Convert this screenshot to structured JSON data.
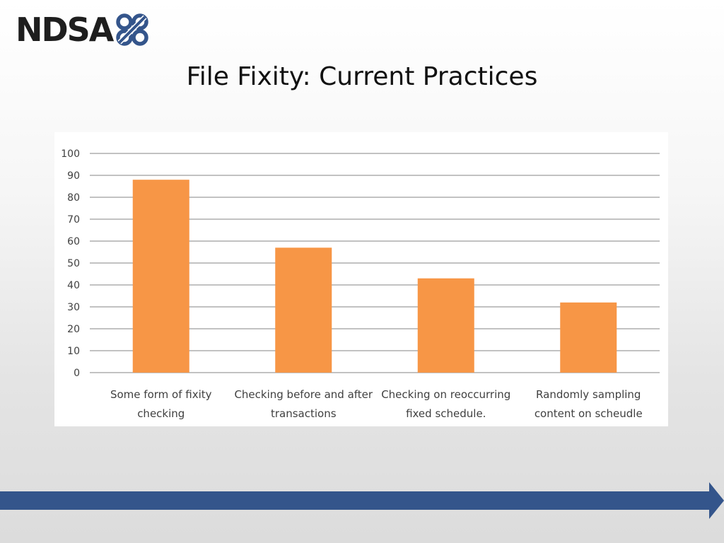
{
  "header": {
    "logo_text": "NDSA",
    "logo_icon": "ndsa-knot-icon"
  },
  "slide": {
    "title": "File Fixity: Current Practices"
  },
  "colors": {
    "bar": "#F79646",
    "grid": "#868686",
    "axis_text": "#404040",
    "arrow": "#34558B",
    "logo_mark": "#34558B"
  },
  "chart_data": {
    "type": "bar",
    "categories": [
      [
        "Some form of fixity",
        "checking"
      ],
      [
        "Checking before and after",
        "transactions"
      ],
      [
        "Checking on reoccurring",
        "fixed schedule."
      ],
      [
        "Randomly sampling",
        "content on scheudle"
      ]
    ],
    "values": [
      88,
      57,
      43,
      32
    ],
    "ylim": [
      0,
      100
    ],
    "yticks": [
      "0",
      "10",
      "20",
      "30",
      "40",
      "50",
      "60",
      "70",
      "80",
      "90",
      "100"
    ],
    "grid": true,
    "legend": "none",
    "title": "",
    "xlabel": "",
    "ylabel": ""
  }
}
